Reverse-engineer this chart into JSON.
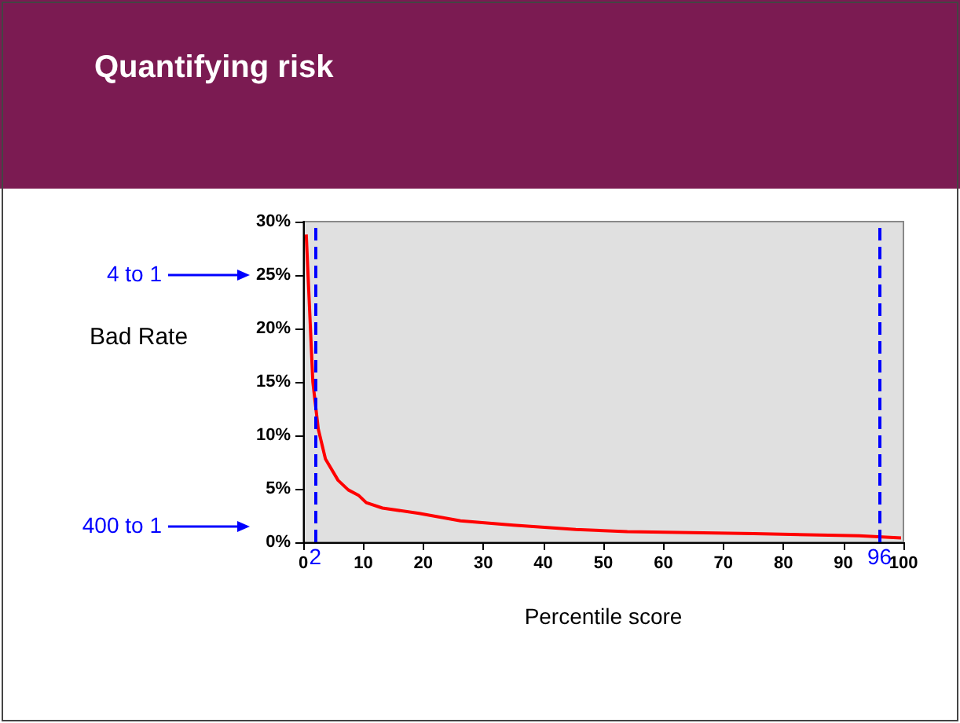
{
  "chart_data": {
    "type": "line",
    "title": "Quantifying risk",
    "xlabel": "Percentile score",
    "ylabel": "Bad Rate",
    "series": [
      {
        "color": "#ff0000",
        "x": [
          0.5,
          1.6,
          2.5,
          3.7,
          5.8,
          7.5,
          9.2,
          10.5,
          13.2,
          19.3,
          26.2,
          35,
          45.4,
          54,
          75,
          92.6,
          99.6
        ],
        "values": [
          28.8,
          15,
          10.6,
          7.8,
          5.8,
          4.9,
          4.4,
          3.7,
          3.2,
          2.7,
          2.0,
          1.6,
          1.2,
          1.0,
          0.8,
          0.6,
          0.4
        ]
      }
    ],
    "xlim": [
      0,
      100
    ],
    "xticks": [
      0,
      10,
      20,
      30,
      40,
      50,
      60,
      70,
      80,
      90,
      100
    ],
    "ylim": [
      0,
      30
    ],
    "yticks": [
      {
        "value": 0,
        "label": "0%"
      },
      {
        "value": 5,
        "label": "5%"
      },
      {
        "value": 10,
        "label": "10%"
      },
      {
        "value": 15,
        "label": "15%"
      },
      {
        "value": 20,
        "label": "20%"
      },
      {
        "value": 25,
        "label": "25%"
      },
      {
        "value": 30,
        "label": "30%"
      }
    ],
    "ref_lines": [
      {
        "axis": "x",
        "value": 2,
        "label": "2",
        "color": "#0000ff",
        "line_style": "dashed"
      },
      {
        "axis": "x",
        "value": 96,
        "label": "96",
        "color": "#0000ff",
        "line_style": "dashed"
      }
    ],
    "annotations": [
      "4 to 1",
      "400 to 1"
    ],
    "grid": false,
    "marker": "none",
    "line_style": "solid"
  }
}
